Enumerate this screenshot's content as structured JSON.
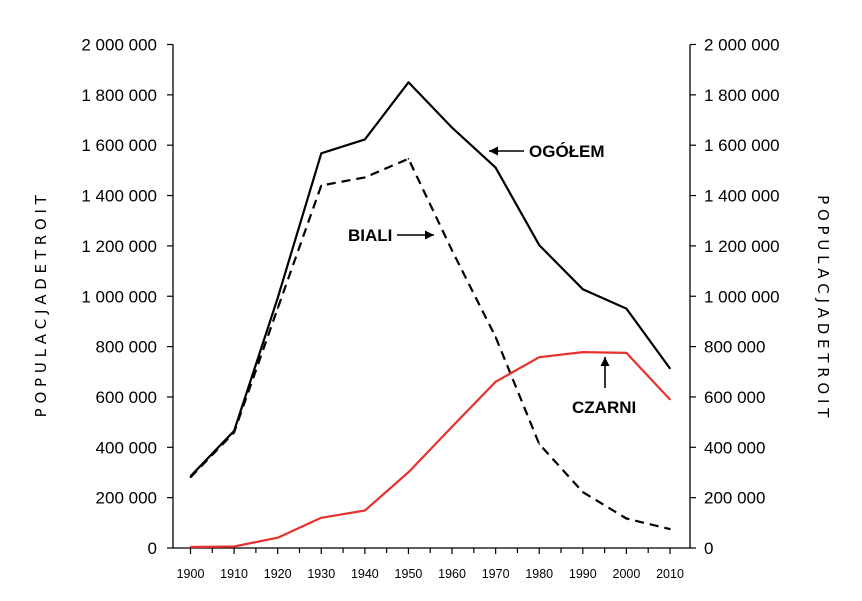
{
  "chart_data": {
    "type": "line",
    "x": [
      1900,
      1910,
      1920,
      1930,
      1940,
      1950,
      1960,
      1970,
      1980,
      1990,
      2000,
      2010
    ],
    "x_ticks": [
      "1900",
      "1910",
      "1920",
      "1930",
      "1940",
      "1950",
      "1960",
      "1970",
      "1980",
      "1990",
      "2000",
      "2010"
    ],
    "y_ticks": [
      "0",
      "200 000",
      "400 000",
      "600 000",
      "800 000",
      "1 000 000",
      "1 200 000",
      "1 400 000",
      "1 600 000",
      "1 800 000",
      "2 000 000"
    ],
    "ylim": [
      0,
      2000000
    ],
    "ylabel_left": "P O P U L A C J A   D E T R O I T",
    "ylabel_right": "P O P U L A C J A   D E T R O I T",
    "grid": false,
    "series": [
      {
        "name": "OGÓŁEM",
        "color": "#000000",
        "style": "solid",
        "points": [
          [
            1900,
            285000
          ],
          [
            1910,
            465000
          ],
          [
            1920,
            993000
          ],
          [
            1930,
            1568000
          ],
          [
            1940,
            1623000
          ],
          [
            1950,
            1850000
          ],
          [
            1960,
            1670000
          ],
          [
            1970,
            1511000
          ],
          [
            1980,
            1203000
          ],
          [
            1990,
            1028000
          ],
          [
            2000,
            951000
          ],
          [
            2010,
            713000
          ]
        ]
      },
      {
        "name": "BIALI",
        "color": "#000000",
        "style": "dashed",
        "points": [
          [
            1900,
            281000
          ],
          [
            1910,
            459000
          ],
          [
            1920,
            952000
          ],
          [
            1930,
            1440000
          ],
          [
            1940,
            1472000
          ],
          [
            1950,
            1546000
          ],
          [
            1960,
            1182000
          ],
          [
            1970,
            838000
          ],
          [
            1980,
            413000
          ],
          [
            1990,
            222000
          ],
          [
            2000,
            117000
          ],
          [
            2010,
            75000
          ]
        ]
      },
      {
        "name": "CZARNI",
        "color": "#e8312c",
        "style": "solid",
        "points": [
          [
            1900,
            4000
          ],
          [
            1910,
            6000
          ],
          [
            1920,
            41000
          ],
          [
            1930,
            120000
          ],
          [
            1940,
            149000
          ],
          [
            1950,
            301000
          ],
          [
            1960,
            482000
          ],
          [
            1970,
            660000
          ],
          [
            1980,
            758000
          ],
          [
            1990,
            778000
          ],
          [
            2000,
            775000
          ],
          [
            2010,
            590000
          ]
        ]
      }
    ],
    "annotations": [
      {
        "text": "OGÓŁEM",
        "series": "OGÓŁEM"
      },
      {
        "text": "BIALI",
        "series": "BIALI"
      },
      {
        "text": "CZARNI",
        "series": "CZARNI"
      }
    ]
  }
}
